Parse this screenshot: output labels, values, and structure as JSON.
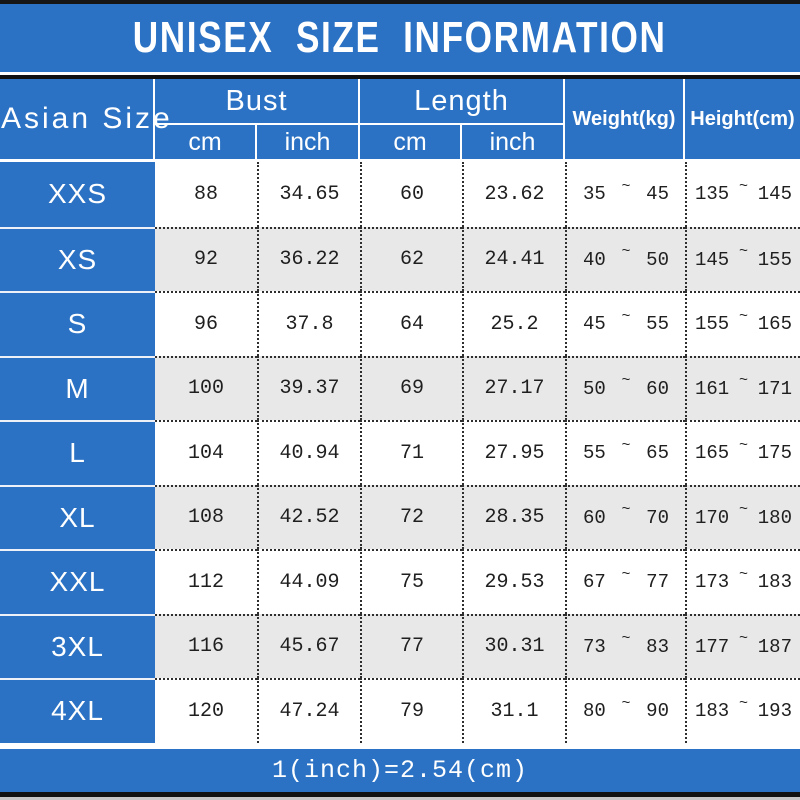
{
  "title": "UNISEX SIZE INFORMATION",
  "colors": {
    "banner_blue": "#2b72c4",
    "alt_row_gray": "#e8e8e8",
    "data_text": "#1f1f1f",
    "bottom_strip_gray": "#c6c6c6"
  },
  "table": {
    "corner_header": "Asian Size",
    "bust_header": "Bust",
    "length_header": "Length",
    "weight_header": "Weight(kg)",
    "height_header": "Height(cm)",
    "unit_cm": "cm",
    "unit_inch": "inch",
    "range_separator": "~",
    "rows": [
      {
        "size": "XXS",
        "bust_cm": "88",
        "bust_inch": "34.65",
        "length_cm": "60",
        "length_inch": "23.62",
        "weight_min": "35",
        "weight_max": "45",
        "height_min": "135",
        "height_max": "145"
      },
      {
        "size": "XS",
        "bust_cm": "92",
        "bust_inch": "36.22",
        "length_cm": "62",
        "length_inch": "24.41",
        "weight_min": "40",
        "weight_max": "50",
        "height_min": "145",
        "height_max": "155"
      },
      {
        "size": "S",
        "bust_cm": "96",
        "bust_inch": "37.8",
        "length_cm": "64",
        "length_inch": "25.2",
        "weight_min": "45",
        "weight_max": "55",
        "height_min": "155",
        "height_max": "165"
      },
      {
        "size": "M",
        "bust_cm": "100",
        "bust_inch": "39.37",
        "length_cm": "69",
        "length_inch": "27.17",
        "weight_min": "50",
        "weight_max": "60",
        "height_min": "161",
        "height_max": "171"
      },
      {
        "size": "L",
        "bust_cm": "104",
        "bust_inch": "40.94",
        "length_cm": "71",
        "length_inch": "27.95",
        "weight_min": "55",
        "weight_max": "65",
        "height_min": "165",
        "height_max": "175"
      },
      {
        "size": "XL",
        "bust_cm": "108",
        "bust_inch": "42.52",
        "length_cm": "72",
        "length_inch": "28.35",
        "weight_min": "60",
        "weight_max": "70",
        "height_min": "170",
        "height_max": "180"
      },
      {
        "size": "XXL",
        "bust_cm": "112",
        "bust_inch": "44.09",
        "length_cm": "75",
        "length_inch": "29.53",
        "weight_min": "67",
        "weight_max": "77",
        "height_min": "173",
        "height_max": "183"
      },
      {
        "size": "3XL",
        "bust_cm": "116",
        "bust_inch": "45.67",
        "length_cm": "77",
        "length_inch": "30.31",
        "weight_min": "73",
        "weight_max": "83",
        "height_min": "177",
        "height_max": "187"
      },
      {
        "size": "4XL",
        "bust_cm": "120",
        "bust_inch": "47.24",
        "length_cm": "79",
        "length_inch": "31.1",
        "weight_min": "80",
        "weight_max": "90",
        "height_min": "183",
        "height_max": "193"
      }
    ]
  },
  "footer": {
    "note": "1(inch)=2.54(cm)"
  },
  "chart_data": {
    "type": "table",
    "title": "UNISEX SIZE INFORMATION",
    "columns": [
      "Asian Size",
      "Bust cm",
      "Bust inch",
      "Length cm",
      "Length inch",
      "Weight(kg)",
      "Height(cm)"
    ],
    "rows": [
      [
        "XXS",
        88,
        34.65,
        60,
        23.62,
        "35~45",
        "135~145"
      ],
      [
        "XS",
        92,
        36.22,
        62,
        24.41,
        "40~50",
        "145~155"
      ],
      [
        "S",
        96,
        37.8,
        64,
        25.2,
        "45~55",
        "155~165"
      ],
      [
        "M",
        100,
        39.37,
        69,
        27.17,
        "50~60",
        "161~171"
      ],
      [
        "L",
        104,
        40.94,
        71,
        27.95,
        "55~65",
        "165~175"
      ],
      [
        "XL",
        108,
        42.52,
        72,
        28.35,
        "60~70",
        "170~180"
      ],
      [
        "XXL",
        112,
        44.09,
        75,
        29.53,
        "67~77",
        "173~183"
      ],
      [
        "3XL",
        116,
        45.67,
        77,
        30.31,
        "73~83",
        "177~187"
      ],
      [
        "4XL",
        120,
        47.24,
        79,
        31.1,
        "80~90",
        "183~193"
      ]
    ],
    "footnote": "1(inch)=2.54(cm)"
  }
}
